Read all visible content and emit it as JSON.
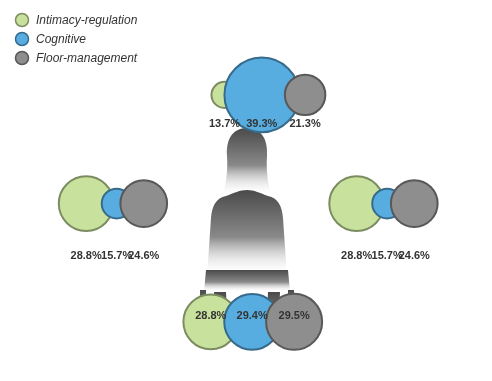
{
  "chart_data": [
    {
      "type": "bubble",
      "categories": [
        "Intimacy-regulation",
        "Cognitive",
        "Floor-management"
      ],
      "values": [
        13.7,
        39.3,
        21.3
      ],
      "value_labels": [
        "13.7%",
        "39.3%",
        "21.3%"
      ],
      "colors": [
        "#c8e29d",
        "#58ade0",
        "#8e8e8e"
      ],
      "data_labels": true,
      "tick_labels": false,
      "legend": "top-left"
    },
    {
      "type": "bubble",
      "categories": [
        "Intimacy-regulation",
        "Cognitive",
        "Floor-management"
      ],
      "values": [
        28.8,
        15.7,
        24.6
      ],
      "value_labels": [
        "28.8%",
        "15.7%",
        "24.6%"
      ],
      "colors": [
        "#c8e29d",
        "#58ade0",
        "#8e8e8e"
      ],
      "data_labels": true,
      "tick_labels": false
    },
    {
      "type": "bubble",
      "categories": [
        "Intimacy-regulation",
        "Cognitive",
        "Floor-management"
      ],
      "values": [
        28.8,
        15.7,
        24.6
      ],
      "value_labels": [
        "28.8%",
        "15.7%",
        "24.6%"
      ],
      "colors": [
        "#c8e29d",
        "#58ade0",
        "#8e8e8e"
      ],
      "data_labels": true,
      "tick_labels": false
    },
    {
      "type": "bubble",
      "categories": [
        "Intimacy-regulation",
        "Cognitive",
        "Floor-management"
      ],
      "values": [
        28.8,
        29.4,
        29.5
      ],
      "value_labels": [
        "28.8%",
        "29.4%",
        "29.5%"
      ],
      "colors": [
        "#c8e29d",
        "#58ade0",
        "#8e8e8e"
      ],
      "data_labels": true,
      "tick_labels": false
    }
  ]
}
